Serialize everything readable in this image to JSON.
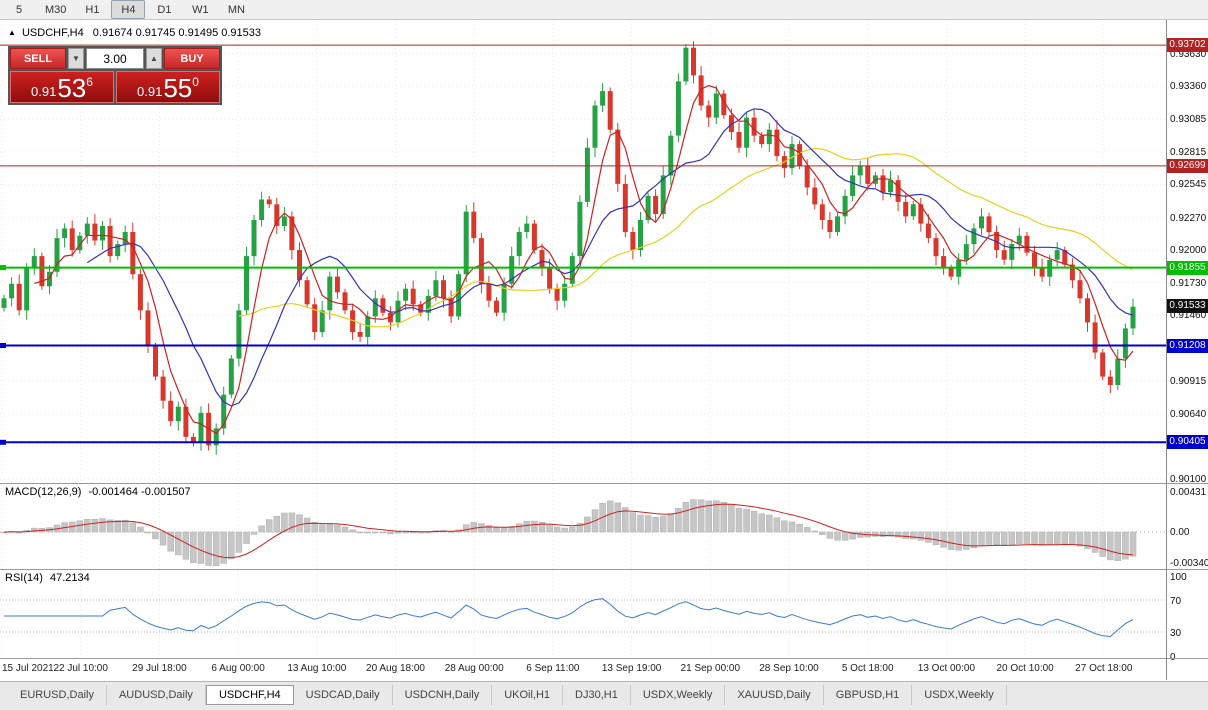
{
  "toolbar": {
    "timeframes": [
      {
        "label": "5",
        "active": false
      },
      {
        "label": "M30",
        "active": false
      },
      {
        "label": "H1",
        "active": false
      },
      {
        "label": "H4",
        "active": true
      },
      {
        "label": "D1",
        "active": false
      },
      {
        "label": "W1",
        "active": false
      },
      {
        "label": "MN",
        "active": false
      }
    ]
  },
  "chart_header": {
    "collapse_icon": "▲",
    "symbol_period": "USDCHF,H4",
    "ohlc": "0.91674 0.91745 0.91495 0.91533"
  },
  "trade_panel": {
    "sell_label": "SELL",
    "buy_label": "BUY",
    "lot_value": "3.00",
    "spin_down_icon": "▼",
    "spin_up_icon": "▲",
    "sell_price": {
      "prefix": "0.91",
      "big": "53",
      "sup": "6"
    },
    "buy_price": {
      "prefix": "0.91",
      "big": "55",
      "sup": "0"
    }
  },
  "chart_data": {
    "type": "candlestick",
    "symbol": "USDCHF",
    "period": "H4",
    "price_max": 0.9391,
    "price_min": 0.90067,
    "price_axis_ticks": [
      "0.93630",
      "0.93360",
      "0.93085",
      "0.92815",
      "0.92545",
      "0.92270",
      "0.92000",
      "0.91730",
      "0.91460",
      "0.91185",
      "0.90915",
      "0.90640",
      "0.90370",
      "0.90100"
    ],
    "time_axis_ticks": [
      "15 Jul 2021",
      "22 Jul 10:00",
      "29 Jul 18:00",
      "6 Aug 00:00",
      "13 Aug 10:00",
      "20 Aug 18:00",
      "28 Aug 00:00",
      "6 Sep 11:00",
      "13 Sep 19:00",
      "21 Sep 00:00",
      "28 Sep 10:00",
      "5 Oct 18:00",
      "13 Oct 00:00",
      "20 Oct 10:00",
      "27 Oct 18:00"
    ],
    "closes": [
      0.916,
      0.9172,
      0.915,
      0.9185,
      0.9195,
      0.917,
      0.9182,
      0.921,
      0.9218,
      0.92,
      0.9212,
      0.9222,
      0.9208,
      0.922,
      0.9195,
      0.9205,
      0.9215,
      0.918,
      0.915,
      0.912,
      0.9095,
      0.9075,
      0.9058,
      0.907,
      0.9045,
      0.904,
      0.9065,
      0.9038,
      0.9052,
      0.908,
      0.911,
      0.915,
      0.9195,
      0.9225,
      0.9242,
      0.9238,
      0.922,
      0.9228,
      0.92,
      0.9175,
      0.9155,
      0.9132,
      0.915,
      0.9178,
      0.9165,
      0.915,
      0.9132,
      0.9128,
      0.9145,
      0.916,
      0.9148,
      0.914,
      0.9158,
      0.9168,
      0.9155,
      0.9148,
      0.9162,
      0.9175,
      0.916,
      0.9145,
      0.918,
      0.9232,
      0.921,
      0.9172,
      0.9158,
      0.9148,
      0.9172,
      0.9195,
      0.9215,
      0.9222,
      0.92,
      0.9185,
      0.9168,
      0.9158,
      0.9172,
      0.9195,
      0.924,
      0.9285,
      0.932,
      0.9332,
      0.93,
      0.9255,
      0.9215,
      0.92,
      0.9225,
      0.9245,
      0.923,
      0.9262,
      0.9295,
      0.934,
      0.9368,
      0.9345,
      0.932,
      0.931,
      0.933,
      0.9312,
      0.9298,
      0.9285,
      0.931,
      0.9295,
      0.9288,
      0.93,
      0.9278,
      0.9268,
      0.9288,
      0.927,
      0.9252,
      0.9238,
      0.9225,
      0.9215,
      0.9228,
      0.9245,
      0.9262,
      0.927,
      0.9255,
      0.9262,
      0.9248,
      0.9258,
      0.924,
      0.9228,
      0.9238,
      0.9222,
      0.921,
      0.9195,
      0.9185,
      0.9178,
      0.9192,
      0.9205,
      0.9218,
      0.9228,
      0.9215,
      0.92,
      0.9192,
      0.9205,
      0.9212,
      0.9198,
      0.9185,
      0.9178,
      0.9192,
      0.92,
      0.9188,
      0.9175,
      0.916,
      0.914,
      0.9115,
      0.9095,
      0.9088,
      0.911,
      0.9135,
      0.9153
    ],
    "candle_colors": {
      "up": "#25a244",
      "down": "#d9372b"
    },
    "ma_colors": {
      "fast": "#cc2222",
      "mid": "#3333bb",
      "slow": "#e8d020"
    },
    "levels": [
      {
        "price": 0.93702,
        "label": "0.93702",
        "color": "#b22222",
        "width": 1,
        "marker": false
      },
      {
        "price": 0.92699,
        "label": "0.92699",
        "color": "#b22222",
        "width": 1,
        "marker": false
      },
      {
        "price": 0.91855,
        "label": "0.91855",
        "color": "#00bf00",
        "width": 2,
        "marker": true
      },
      {
        "price": 0.91208,
        "label": "0.91208",
        "color": "#0000cd",
        "width": 2,
        "marker": true
      },
      {
        "price": 0.90405,
        "label": "0.90405",
        "color": "#0000cd",
        "width": 2,
        "marker": true
      }
    ],
    "bid": {
      "price": 0.91533,
      "label": "0.91533",
      "color": "#111111"
    },
    "indicators": {
      "macd": {
        "label": "MACD(12,26,9)",
        "values": "-0.001464 -0.001507",
        "axis": [
          "0.00431",
          "0.00",
          "-0.00340"
        ],
        "vmax": 0.0052,
        "vmin": -0.004
      },
      "rsi": {
        "label": "RSI(14)",
        "value": "47.2134",
        "axis": [
          100,
          70,
          30,
          0
        ],
        "levels": [
          70,
          30
        ]
      }
    }
  },
  "tabs": {
    "items": [
      "EURUSD,Daily",
      "AUDUSD,Daily",
      "USDCHF,H4",
      "USDCAD,Daily",
      "USDCNH,Daily",
      "UKOil,H1",
      "DJ30,H1",
      "USDX,Weekly",
      "XAUUSD,Daily",
      "GBPUSD,H1",
      "USDX,Weekly"
    ],
    "active_index": 2
  }
}
